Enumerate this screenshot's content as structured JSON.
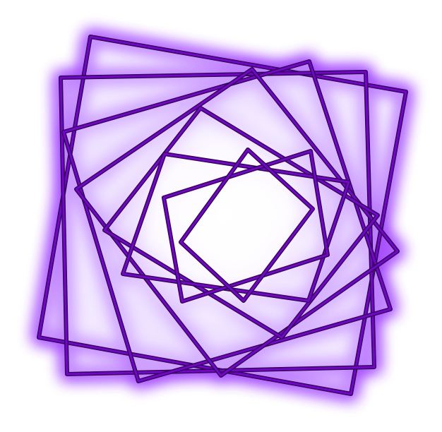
{
  "artwork": {
    "subject": "spiral-of-rotated-squares",
    "square_count": 8,
    "stroke_color": "#7a00d6",
    "outline_color": "#2a0a4a",
    "glow_color": "#a64dff",
    "fill_tint": "#e9d6ff",
    "background": "#ffffff"
  }
}
